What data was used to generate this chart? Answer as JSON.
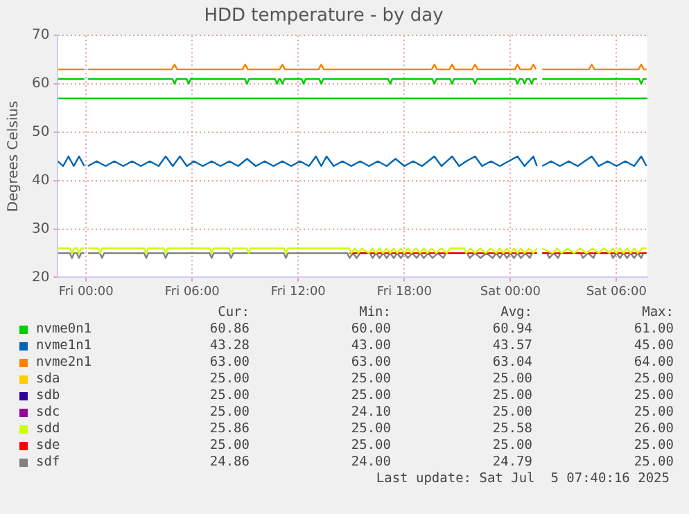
{
  "chart_data": {
    "type": "line",
    "title": "HDD temperature - by day",
    "ylabel": "Degrees Celsius",
    "xlim": [
      "2025-07-03T22:24",
      "2025-07-05T07:45"
    ],
    "xticks": [
      {
        "value": "2025-07-04T00:00",
        "label": "Fri 00:00"
      },
      {
        "value": "2025-07-04T06:00",
        "label": "Fri 06:00"
      },
      {
        "value": "2025-07-04T12:00",
        "label": "Fri 12:00"
      },
      {
        "value": "2025-07-04T18:00",
        "label": "Fri 18:00"
      },
      {
        "value": "2025-07-05T00:00",
        "label": "Sat 00:00"
      },
      {
        "value": "2025-07-05T06:00",
        "label": "Sat 06:00"
      }
    ],
    "ylim": [
      20,
      70
    ],
    "yticks": [
      20,
      30,
      40,
      50,
      60,
      70
    ],
    "grid": true,
    "legend": "bottom",
    "marker": "none",
    "line_style": "solid",
    "ref_lines": [
      {
        "axis": "y",
        "value": 57,
        "color": "#00cc00"
      }
    ],
    "series": [
      {
        "name": "nvme0n1",
        "color": "#00cc00",
        "x": [
          "2025-07-03T22:24",
          "2025-07-03T23:54",
          "2025-07-04T00:00",
          "2025-07-04T00:06",
          "2025-07-04T04:53",
          "2025-07-04T05:00",
          "2025-07-04T05:07",
          "2025-07-04T05:41",
          "2025-07-04T05:48",
          "2025-07-04T05:55",
          "2025-07-04T08:59",
          "2025-07-04T09:06",
          "2025-07-04T09:13",
          "2025-07-04T10:41",
          "2025-07-04T10:48",
          "2025-07-04T10:55",
          "2025-07-04T10:59",
          "2025-07-04T11:06",
          "2025-07-04T11:13",
          "2025-07-04T12:11",
          "2025-07-04T12:18",
          "2025-07-04T12:25",
          "2025-07-04T13:11",
          "2025-07-04T13:18",
          "2025-07-04T13:25",
          "2025-07-04T17:05",
          "2025-07-04T17:12",
          "2025-07-04T17:19",
          "2025-07-04T19:35",
          "2025-07-04T19:42",
          "2025-07-04T19:49",
          "2025-07-04T20:35",
          "2025-07-04T20:42",
          "2025-07-04T20:49",
          "2025-07-04T21:53",
          "2025-07-04T22:00",
          "2025-07-04T22:07",
          "2025-07-05T00:17",
          "2025-07-05T00:24",
          "2025-07-05T00:31",
          "2025-07-05T00:41",
          "2025-07-05T00:48",
          "2025-07-05T00:55",
          "2025-07-05T01:05",
          "2025-07-05T01:12",
          "2025-07-05T01:19",
          "2025-07-05T01:30",
          "2025-07-05T01:36",
          "2025-07-05T01:48",
          "2025-07-05T07:17",
          "2025-07-05T07:24",
          "2025-07-05T07:31",
          "2025-07-05T07:42"
        ],
        "values": [
          61,
          61,
          null,
          61,
          61,
          60,
          61,
          61,
          60,
          61,
          61,
          60,
          61,
          61,
          60,
          61,
          61,
          60,
          61,
          61,
          60,
          61,
          61,
          60,
          61,
          61,
          60,
          61,
          61,
          60,
          61,
          61,
          60,
          61,
          61,
          60,
          61,
          61,
          60,
          61,
          61,
          60,
          61,
          61,
          60,
          61,
          61,
          null,
          61,
          61,
          60,
          61,
          61
        ]
      },
      {
        "name": "nvme1n1",
        "color": "#0066b3",
        "x": [
          "2025-07-03T22:24",
          "2025-07-03T22:42",
          "2025-07-03T23:00",
          "2025-07-03T23:18",
          "2025-07-03T23:36",
          "2025-07-03T23:54",
          "2025-07-04T00:00",
          "2025-07-04T00:06",
          "2025-07-04T00:36",
          "2025-07-04T01:06",
          "2025-07-04T01:36",
          "2025-07-04T02:06",
          "2025-07-04T02:36",
          "2025-07-04T03:06",
          "2025-07-04T03:36",
          "2025-07-04T04:06",
          "2025-07-04T04:30",
          "2025-07-04T04:54",
          "2025-07-04T05:18",
          "2025-07-04T05:42",
          "2025-07-04T06:06",
          "2025-07-04T06:36",
          "2025-07-04T07:06",
          "2025-07-04T07:36",
          "2025-07-04T08:06",
          "2025-07-04T08:36",
          "2025-07-04T09:06",
          "2025-07-04T09:36",
          "2025-07-04T10:06",
          "2025-07-04T10:36",
          "2025-07-04T11:06",
          "2025-07-04T11:36",
          "2025-07-04T12:06",
          "2025-07-04T12:36",
          "2025-07-04T13:00",
          "2025-07-04T13:18",
          "2025-07-04T13:36",
          "2025-07-04T14:00",
          "2025-07-04T14:30",
          "2025-07-04T15:00",
          "2025-07-04T15:30",
          "2025-07-04T16:00",
          "2025-07-04T16:30",
          "2025-07-04T17:00",
          "2025-07-04T17:30",
          "2025-07-04T18:00",
          "2025-07-04T18:30",
          "2025-07-04T19:00",
          "2025-07-04T19:42",
          "2025-07-04T20:06",
          "2025-07-04T20:42",
          "2025-07-04T21:06",
          "2025-07-04T21:30",
          "2025-07-04T22:00",
          "2025-07-04T22:24",
          "2025-07-04T22:54",
          "2025-07-04T23:24",
          "2025-07-04T23:54",
          "2025-07-05T00:24",
          "2025-07-05T00:48",
          "2025-07-05T01:18",
          "2025-07-05T01:30",
          "2025-07-05T01:36",
          "2025-07-05T01:48",
          "2025-07-05T02:18",
          "2025-07-05T02:48",
          "2025-07-05T03:18",
          "2025-07-05T03:48",
          "2025-07-05T04:12",
          "2025-07-05T04:36",
          "2025-07-05T05:00",
          "2025-07-05T05:30",
          "2025-07-05T06:00",
          "2025-07-05T06:30",
          "2025-07-05T07:00",
          "2025-07-05T07:24",
          "2025-07-05T07:42"
        ],
        "values": [
          44,
          43,
          45,
          43,
          45,
          43,
          null,
          43,
          44,
          43,
          44,
          43,
          44,
          43,
          44,
          43,
          45,
          43,
          45,
          43,
          44,
          43,
          44,
          43,
          44,
          43,
          44.5,
          43,
          44,
          43,
          44,
          43,
          44,
          43,
          45,
          43,
          45,
          43,
          44,
          43,
          44,
          43,
          44,
          43,
          44.5,
          43,
          44,
          43,
          45,
          43,
          45,
          43,
          44,
          45,
          43,
          44,
          43,
          44,
          45,
          43,
          45,
          43,
          null,
          43,
          44,
          43,
          44,
          43,
          44,
          45,
          43,
          44,
          43,
          44,
          43,
          45,
          43
        ]
      },
      {
        "name": "nvme2n1",
        "color": "#ff8000",
        "x": [
          "2025-07-03T22:24",
          "2025-07-03T23:54",
          "2025-07-04T00:00",
          "2025-07-04T00:06",
          "2025-07-04T04:51",
          "2025-07-04T05:00",
          "2025-07-04T05:09",
          "2025-07-04T08:51",
          "2025-07-04T09:00",
          "2025-07-04T09:09",
          "2025-07-04T10:57",
          "2025-07-04T11:06",
          "2025-07-04T11:15",
          "2025-07-04T13:09",
          "2025-07-04T13:18",
          "2025-07-04T13:27",
          "2025-07-04T19:33",
          "2025-07-04T19:42",
          "2025-07-04T19:51",
          "2025-07-04T20:33",
          "2025-07-04T20:42",
          "2025-07-04T20:51",
          "2025-07-04T21:51",
          "2025-07-04T22:00",
          "2025-07-04T22:09",
          "2025-07-05T00:15",
          "2025-07-05T00:24",
          "2025-07-05T00:33",
          "2025-07-05T01:09",
          "2025-07-05T01:18",
          "2025-07-05T01:27",
          "2025-07-05T01:36",
          "2025-07-05T01:48",
          "2025-07-05T04:27",
          "2025-07-05T04:36",
          "2025-07-05T04:45",
          "2025-07-05T07:15",
          "2025-07-05T07:24",
          "2025-07-05T07:33",
          "2025-07-05T07:42"
        ],
        "values": [
          63,
          63,
          null,
          63,
          63,
          64,
          63,
          63,
          64,
          63,
          63,
          64,
          63,
          63,
          64,
          63,
          63,
          64,
          63,
          63,
          64,
          63,
          63,
          64,
          63,
          63,
          64,
          63,
          63,
          64,
          63,
          null,
          63,
          63,
          64,
          63,
          63,
          64,
          63,
          63
        ]
      },
      {
        "name": "sda",
        "color": "#ffcc00"
      },
      {
        "name": "sdb",
        "color": "#330099"
      },
      {
        "name": "sdc",
        "color": "#990099"
      },
      {
        "name": "sdd",
        "color": "#ccff00",
        "x": [
          "2025-07-03T22:24",
          "2025-07-03T23:05",
          "2025-07-03T23:12",
          "2025-07-03T23:19",
          "2025-07-03T23:29",
          "2025-07-03T23:36",
          "2025-07-03T23:43",
          "2025-07-03T23:54",
          "2025-07-04T00:00",
          "2025-07-04T00:06",
          "2025-07-04T00:41",
          "2025-07-04T00:48",
          "2025-07-04T00:55",
          "2025-07-04T03:17",
          "2025-07-04T03:24",
          "2025-07-04T03:31",
          "2025-07-04T04:23",
          "2025-07-04T04:30",
          "2025-07-04T04:37",
          "2025-07-04T06:59",
          "2025-07-04T07:06",
          "2025-07-04T07:13",
          "2025-07-04T08:05",
          "2025-07-04T08:12",
          "2025-07-04T08:19",
          "2025-07-04T09:05",
          "2025-07-04T09:12",
          "2025-07-04T09:19",
          "2025-07-04T11:11",
          "2025-07-04T11:18",
          "2025-07-04T11:25",
          "2025-07-04T14:53",
          "2025-07-04T15:00",
          "2025-07-04T15:12",
          "2025-07-04T15:24",
          "2025-07-04T15:36",
          "2025-07-04T16:00",
          "2025-07-04T16:12",
          "2025-07-04T16:24",
          "2025-07-04T16:36",
          "2025-07-04T16:48",
          "2025-07-04T17:00",
          "2025-07-04T17:12",
          "2025-07-04T17:24",
          "2025-07-04T17:36",
          "2025-07-04T17:48",
          "2025-07-04T18:00",
          "2025-07-04T18:12",
          "2025-07-04T18:24",
          "2025-07-04T18:39",
          "2025-07-04T18:54",
          "2025-07-04T19:06",
          "2025-07-04T19:18",
          "2025-07-04T19:33",
          "2025-07-04T19:48",
          "2025-07-04T20:06",
          "2025-07-04T20:24",
          "2025-07-04T20:36",
          "2025-07-04T21:23",
          "2025-07-04T21:30",
          "2025-07-04T21:45",
          "2025-07-04T22:00",
          "2025-07-04T22:18",
          "2025-07-04T22:36",
          "2025-07-04T22:54",
          "2025-07-04T23:12",
          "2025-07-04T23:24",
          "2025-07-04T23:36",
          "2025-07-04T23:48",
          "2025-07-05T00:00",
          "2025-07-05T00:12",
          "2025-07-05T00:24",
          "2025-07-05T00:36",
          "2025-07-05T00:48",
          "2025-07-05T01:03",
          "2025-07-05T01:18",
          "2025-07-05T01:30",
          "2025-07-05T01:36",
          "2025-07-05T01:48",
          "2025-07-05T02:24",
          "2025-07-05T02:39",
          "2025-07-05T02:54",
          "2025-07-05T03:15",
          "2025-07-05T03:36",
          "2025-07-05T03:57",
          "2025-07-05T04:18",
          "2025-07-05T04:39",
          "2025-07-05T05:00",
          "2025-07-05T05:18",
          "2025-07-05T05:36",
          "2025-07-05T05:48",
          "2025-07-05T06:00",
          "2025-07-05T06:12",
          "2025-07-05T06:24",
          "2025-07-05T06:36",
          "2025-07-05T06:48",
          "2025-07-05T07:00",
          "2025-07-05T07:12",
          "2025-07-05T07:27",
          "2025-07-05T07:42"
        ],
        "values": [
          26,
          26,
          25,
          26,
          26,
          25,
          26,
          26,
          null,
          26,
          26,
          25,
          26,
          26,
          25,
          26,
          26,
          25,
          26,
          26,
          25,
          26,
          26,
          25,
          26,
          26,
          25,
          26,
          26,
          25,
          26,
          26,
          25,
          26,
          25,
          26,
          25,
          26,
          25,
          26,
          25,
          26,
          25,
          26,
          25,
          26,
          25,
          26,
          25,
          26,
          25,
          26,
          25,
          26,
          25,
          26,
          25,
          26,
          26,
          25,
          26,
          25,
          26,
          25,
          26,
          25,
          26,
          25,
          26,
          25,
          26,
          25,
          26,
          25,
          26,
          25,
          26,
          null,
          26,
          25,
          26,
          25,
          26,
          25,
          26,
          25,
          26,
          25,
          26,
          25,
          26,
          25,
          26,
          25,
          26,
          25,
          26,
          25,
          26,
          26
        ]
      },
      {
        "name": "sde",
        "color": "#ff0000",
        "x": [
          "2025-07-04T14:54",
          "2025-07-05T01:30",
          "2025-07-05T01:36",
          "2025-07-05T01:48",
          "2025-07-05T07:42"
        ],
        "values": [
          25,
          25,
          null,
          25,
          25
        ]
      },
      {
        "name": "sdf",
        "color": "#808080",
        "x": [
          "2025-07-03T22:24",
          "2025-07-03T23:05",
          "2025-07-03T23:12",
          "2025-07-03T23:19",
          "2025-07-03T23:29",
          "2025-07-03T23:36",
          "2025-07-03T23:43",
          "2025-07-03T23:54",
          "2025-07-04T00:00",
          "2025-07-04T00:06",
          "2025-07-04T00:47",
          "2025-07-04T00:54",
          "2025-07-04T01:01",
          "2025-07-04T03:17",
          "2025-07-04T03:24",
          "2025-07-04T03:31",
          "2025-07-04T04:23",
          "2025-07-04T04:30",
          "2025-07-04T04:37",
          "2025-07-04T06:59",
          "2025-07-04T07:06",
          "2025-07-04T07:13",
          "2025-07-04T08:05",
          "2025-07-04T08:12",
          "2025-07-04T08:19",
          "2025-07-04T11:11",
          "2025-07-04T11:18",
          "2025-07-04T11:25",
          "2025-07-04T14:47",
          "2025-07-04T14:54",
          "2025-07-04T15:06",
          "2025-07-04T15:18",
          "2025-07-04T15:30",
          "2025-07-04T16:03",
          "2025-07-04T16:12",
          "2025-07-04T16:24",
          "2025-07-04T16:36",
          "2025-07-04T16:48",
          "2025-07-04T17:00",
          "2025-07-04T17:12",
          "2025-07-04T17:24",
          "2025-07-04T17:36",
          "2025-07-04T17:48",
          "2025-07-04T18:00",
          "2025-07-04T18:12",
          "2025-07-04T18:27",
          "2025-07-04T18:42",
          "2025-07-04T18:54",
          "2025-07-04T19:06",
          "2025-07-04T19:21",
          "2025-07-04T19:36",
          "2025-07-04T19:54",
          "2025-07-04T20:12",
          "2025-07-04T20:21",
          "2025-07-04T21:33",
          "2025-07-04T21:42",
          "2025-07-04T22:00",
          "2025-07-04T22:18",
          "2025-07-04T22:39",
          "2025-07-04T23:00",
          "2025-07-04T23:12",
          "2025-07-04T23:24",
          "2025-07-04T23:36",
          "2025-07-04T23:48",
          "2025-07-05T00:00",
          "2025-07-05T00:12",
          "2025-07-05T00:24",
          "2025-07-05T00:36",
          "2025-07-05T00:51",
          "2025-07-05T01:06",
          "2025-07-05T01:13",
          "2025-07-05T01:30",
          "2025-07-05T01:36",
          "2025-07-05T01:48",
          "2025-07-05T02:05",
          "2025-07-05T02:12",
          "2025-07-05T02:27",
          "2025-07-05T02:42",
          "2025-07-05T02:49",
          "2025-07-05T03:59",
          "2025-07-05T04:06",
          "2025-07-05T04:24",
          "2025-07-05T04:42",
          "2025-07-05T04:49",
          "2025-07-05T05:41",
          "2025-07-05T05:48",
          "2025-07-05T06:00",
          "2025-07-05T06:12",
          "2025-07-05T06:24",
          "2025-07-05T06:36",
          "2025-07-05T06:48",
          "2025-07-05T07:00",
          "2025-07-05T07:12",
          "2025-07-05T07:24",
          "2025-07-05T07:31",
          "2025-07-05T07:42"
        ],
        "values": [
          25,
          25,
          24,
          25,
          25,
          24,
          25,
          25,
          null,
          25,
          25,
          24,
          25,
          25,
          24,
          25,
          25,
          24,
          25,
          25,
          24,
          25,
          25,
          24,
          25,
          25,
          24,
          25,
          25,
          24,
          25,
          24,
          25,
          25,
          24,
          25,
          24,
          25,
          24,
          25,
          24,
          25,
          24,
          25,
          24,
          25,
          24,
          25,
          24,
          25,
          24,
          25,
          24,
          25,
          25,
          24,
          25,
          24,
          25,
          24,
          25,
          24,
          25,
          24,
          25,
          24,
          25,
          24,
          25,
          24,
          25,
          25,
          null,
          25,
          25,
          24,
          25,
          24,
          25,
          25,
          24,
          25,
          24,
          25,
          25,
          24,
          25,
          24,
          25,
          24,
          25,
          24,
          25,
          24,
          25,
          25
        ]
      }
    ],
    "annotations": [
      "Cur:",
      "Min:",
      "Avg:",
      "Max:",
      "60.86",
      "60.00",
      "60.94",
      "61.00",
      "43.28",
      "43.00",
      "43.57",
      "45.00",
      "63.00",
      "63.00",
      "63.04",
      "64.00",
      "25.00",
      "25.00",
      "25.00",
      "25.00",
      "25.00",
      "25.00",
      "25.00",
      "25.00",
      "25.00",
      "24.10",
      "25.00",
      "25.00",
      "25.86",
      "25.00",
      "25.58",
      "26.00",
      "25.00",
      "25.00",
      "25.00",
      "25.00",
      "24.86",
      "24.00",
      "24.79",
      "25.00",
      "Last update: Sat Jul  5 07:40:16 2025"
    ]
  }
}
